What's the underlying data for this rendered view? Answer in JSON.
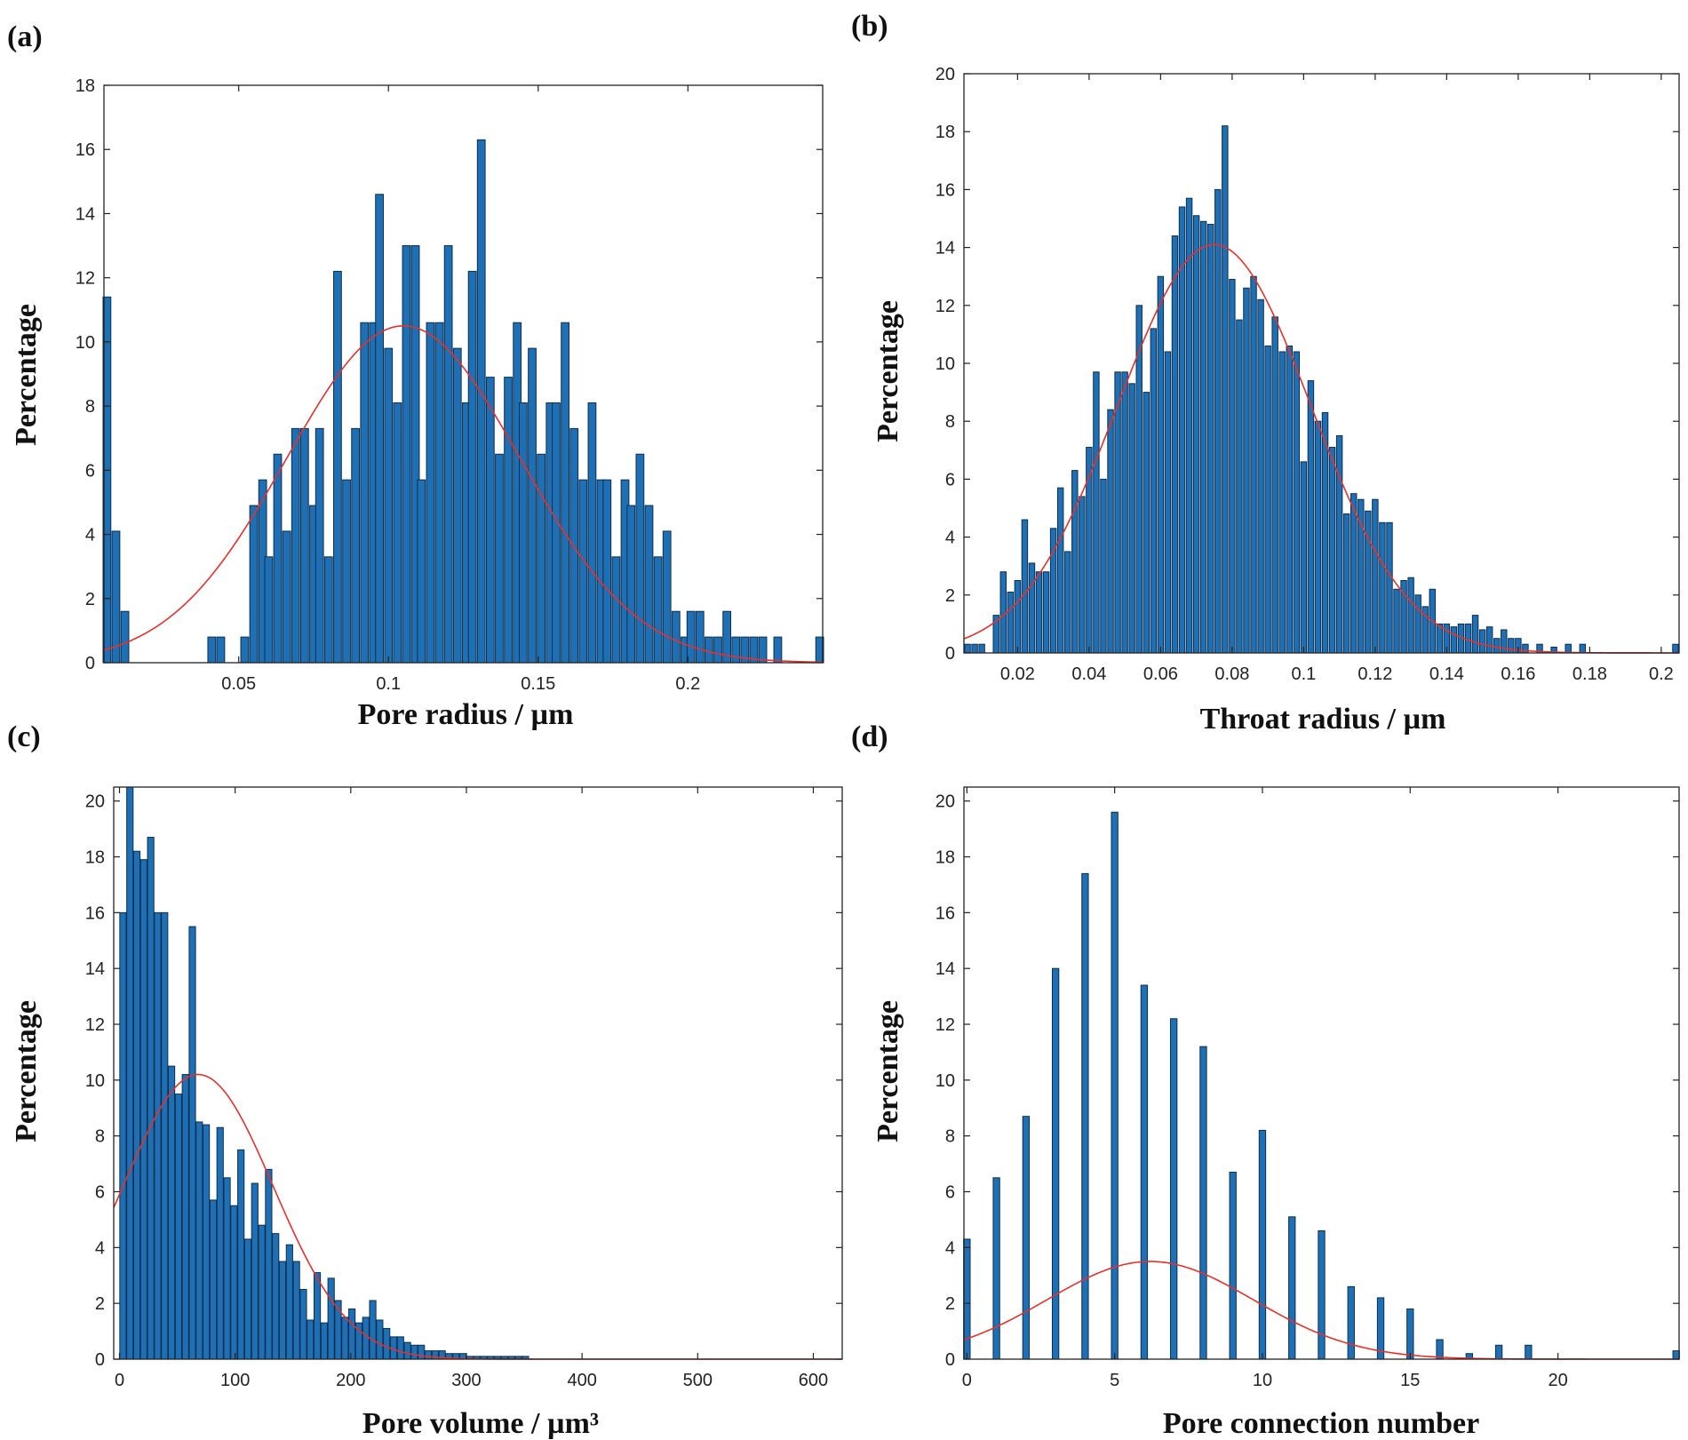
{
  "figure": {
    "bar_color": "#1f6fb4",
    "bar_edge": "#0c2f4f",
    "fit_color": "#e8302b"
  },
  "chart_data": [
    {
      "id": "a",
      "panel_label": "(a)",
      "type": "bar",
      "xlabel": "Pore radius / µm",
      "ylabel": "Percentage",
      "xlim": [
        0.005,
        0.245
      ],
      "ylim": [
        0,
        18
      ],
      "xticks": [
        0.05,
        0.1,
        0.15,
        0.2
      ],
      "xtick_labels": [
        "0.05",
        "0.1",
        "0.15",
        "0.2"
      ],
      "yticks": [
        0,
        2,
        4,
        6,
        8,
        10,
        12,
        14,
        16,
        18
      ],
      "ytick_labels": [
        "0",
        "2",
        "4",
        "6",
        "8",
        "10",
        "12",
        "14",
        "16",
        "18"
      ],
      "bar_width": 0.0026,
      "bars": [
        [
          0.006,
          11.4
        ],
        [
          0.009,
          4.1
        ],
        [
          0.012,
          1.6
        ],
        [
          0.041,
          0.8
        ],
        [
          0.044,
          0.8
        ],
        [
          0.052,
          0.8
        ],
        [
          0.055,
          4.9
        ],
        [
          0.058,
          5.7
        ],
        [
          0.06,
          3.3
        ],
        [
          0.063,
          6.5
        ],
        [
          0.066,
          4.1
        ],
        [
          0.069,
          7.3
        ],
        [
          0.072,
          7.3
        ],
        [
          0.075,
          4.9
        ],
        [
          0.077,
          7.3
        ],
        [
          0.08,
          3.3
        ],
        [
          0.083,
          12.2
        ],
        [
          0.086,
          5.7
        ],
        [
          0.089,
          7.3
        ],
        [
          0.092,
          10.6
        ],
        [
          0.095,
          10.6
        ],
        [
          0.097,
          14.6
        ],
        [
          0.1,
          9.8
        ],
        [
          0.103,
          8.1
        ],
        [
          0.106,
          13
        ],
        [
          0.109,
          13
        ],
        [
          0.111,
          5.7
        ],
        [
          0.114,
          10.6
        ],
        [
          0.117,
          10.6
        ],
        [
          0.12,
          13
        ],
        [
          0.123,
          9.8
        ],
        [
          0.126,
          8.1
        ],
        [
          0.128,
          12.2
        ],
        [
          0.131,
          16.3
        ],
        [
          0.134,
          8.9
        ],
        [
          0.137,
          6.5
        ],
        [
          0.14,
          8.9
        ],
        [
          0.143,
          10.6
        ],
        [
          0.145,
          8.1
        ],
        [
          0.148,
          9.8
        ],
        [
          0.151,
          6.5
        ],
        [
          0.154,
          8.1
        ],
        [
          0.156,
          8.1
        ],
        [
          0.159,
          10.6
        ],
        [
          0.162,
          7.3
        ],
        [
          0.165,
          5.7
        ],
        [
          0.168,
          8.1
        ],
        [
          0.171,
          5.7
        ],
        [
          0.173,
          5.7
        ],
        [
          0.176,
          3.3
        ],
        [
          0.179,
          5.7
        ],
        [
          0.181,
          4.9
        ],
        [
          0.184,
          6.5
        ],
        [
          0.187,
          4.9
        ],
        [
          0.19,
          3.3
        ],
        [
          0.193,
          4.1
        ],
        [
          0.196,
          1.6
        ],
        [
          0.199,
          0.8
        ],
        [
          0.201,
          1.6
        ],
        [
          0.204,
          1.6
        ],
        [
          0.207,
          0.8
        ],
        [
          0.21,
          0.8
        ],
        [
          0.213,
          1.6
        ],
        [
          0.216,
          0.8
        ],
        [
          0.219,
          0.8
        ],
        [
          0.222,
          0.8
        ],
        [
          0.225,
          0.8
        ],
        [
          0.23,
          0.8
        ],
        [
          0.244,
          0.8
        ]
      ],
      "fit": {
        "mean": 0.105,
        "sd": 0.039,
        "peak": 10.5
      }
    },
    {
      "id": "b",
      "panel_label": "(b)",
      "type": "bar",
      "xlabel": "Throat radius / µm",
      "ylabel": "Percentage",
      "xlim": [
        0.005,
        0.205
      ],
      "ylim": [
        0,
        20
      ],
      "xticks": [
        0.02,
        0.04,
        0.06,
        0.08,
        0.1,
        0.12,
        0.14,
        0.16,
        0.18,
        0.2
      ],
      "xtick_labels": [
        "0.02",
        "0.04",
        "0.06",
        "0.08",
        "0.1",
        "0.12",
        "0.14",
        "0.16",
        "0.18",
        "0.2"
      ],
      "yticks": [
        0,
        2,
        4,
        6,
        8,
        10,
        12,
        14,
        16,
        18,
        20
      ],
      "ytick_labels": [
        "0",
        "2",
        "4",
        "6",
        "8",
        "10",
        "12",
        "14",
        "16",
        "18",
        "20"
      ],
      "bar_width": 0.0016,
      "bars": [
        [
          0.006,
          0.3
        ],
        [
          0.008,
          0.3
        ],
        [
          0.01,
          0.3
        ],
        [
          0.014,
          1.3
        ],
        [
          0.016,
          2.8
        ],
        [
          0.018,
          2.1
        ],
        [
          0.02,
          2.5
        ],
        [
          0.022,
          4.6
        ],
        [
          0.024,
          3.1
        ],
        [
          0.026,
          2.8
        ],
        [
          0.028,
          2.8
        ],
        [
          0.03,
          4.3
        ],
        [
          0.032,
          5.7
        ],
        [
          0.034,
          3.5
        ],
        [
          0.036,
          6.3
        ],
        [
          0.038,
          5.4
        ],
        [
          0.04,
          7.1
        ],
        [
          0.042,
          9.7
        ],
        [
          0.044,
          6
        ],
        [
          0.046,
          8.4
        ],
        [
          0.048,
          9.7
        ],
        [
          0.05,
          9.7
        ],
        [
          0.052,
          9.3
        ],
        [
          0.054,
          12
        ],
        [
          0.056,
          9
        ],
        [
          0.058,
          11.2
        ],
        [
          0.06,
          13
        ],
        [
          0.062,
          10.4
        ],
        [
          0.064,
          14.4
        ],
        [
          0.066,
          15.4
        ],
        [
          0.068,
          15.7
        ],
        [
          0.07,
          15.1
        ],
        [
          0.072,
          14.9
        ],
        [
          0.074,
          14.8
        ],
        [
          0.076,
          16
        ],
        [
          0.078,
          18.2
        ],
        [
          0.08,
          12.9
        ],
        [
          0.082,
          11.5
        ],
        [
          0.084,
          12.6
        ],
        [
          0.086,
          13
        ],
        [
          0.088,
          12.2
        ],
        [
          0.09,
          10.6
        ],
        [
          0.092,
          11.6
        ],
        [
          0.094,
          10.4
        ],
        [
          0.096,
          10.6
        ],
        [
          0.098,
          10.4
        ],
        [
          0.1,
          6.6
        ],
        [
          0.102,
          9.4
        ],
        [
          0.104,
          8
        ],
        [
          0.106,
          8.3
        ],
        [
          0.108,
          7.1
        ],
        [
          0.11,
          7.5
        ],
        [
          0.112,
          4.8
        ],
        [
          0.114,
          5.5
        ],
        [
          0.116,
          5.3
        ],
        [
          0.118,
          4.9
        ],
        [
          0.12,
          5.3
        ],
        [
          0.122,
          4.5
        ],
        [
          0.124,
          4.5
        ],
        [
          0.126,
          2.2
        ],
        [
          0.128,
          2.5
        ],
        [
          0.13,
          2.6
        ],
        [
          0.132,
          2
        ],
        [
          0.134,
          1.6
        ],
        [
          0.136,
          2.2
        ],
        [
          0.138,
          1
        ],
        [
          0.14,
          1
        ],
        [
          0.142,
          0.9
        ],
        [
          0.144,
          1
        ],
        [
          0.146,
          1
        ],
        [
          0.148,
          1.3
        ],
        [
          0.15,
          0.8
        ],
        [
          0.152,
          0.9
        ],
        [
          0.154,
          0.5
        ],
        [
          0.156,
          0.8
        ],
        [
          0.158,
          0.5
        ],
        [
          0.16,
          0.5
        ],
        [
          0.162,
          0.3
        ],
        [
          0.166,
          0.3
        ],
        [
          0.17,
          0.2
        ],
        [
          0.174,
          0.3
        ],
        [
          0.178,
          0.3
        ],
        [
          0.204,
          0.3
        ]
      ],
      "fit": {
        "mean": 0.075,
        "sd": 0.027,
        "peak": 14.1
      }
    },
    {
      "id": "c",
      "panel_label": "(c)",
      "type": "bar",
      "xlabel": "Pore volume / µm³",
      "ylabel": "Percentage",
      "xlim": [
        -5,
        625
      ],
      "ylim": [
        0,
        20.5
      ],
      "xticks": [
        0,
        100,
        200,
        300,
        400,
        500,
        600
      ],
      "xtick_labels": [
        "0",
        "100",
        "200",
        "300",
        "400",
        "500",
        "600"
      ],
      "yticks": [
        0,
        2,
        4,
        6,
        8,
        10,
        12,
        14,
        16,
        18,
        20
      ],
      "ytick_labels": [
        "0",
        "2",
        "4",
        "6",
        "8",
        "10",
        "12",
        "14",
        "16",
        "18",
        "20"
      ],
      "bar_width": 5.5,
      "bars": [
        [
          3,
          16
        ],
        [
          9,
          20.5
        ],
        [
          15,
          18.2
        ],
        [
          21,
          17.9
        ],
        [
          27,
          18.7
        ],
        [
          33,
          16
        ],
        [
          39,
          16
        ],
        [
          45,
          10.5
        ],
        [
          51,
          9.5
        ],
        [
          57,
          10.2
        ],
        [
          63,
          15.5
        ],
        [
          69,
          8.5
        ],
        [
          75,
          8.4
        ],
        [
          81,
          5.7
        ],
        [
          87,
          8.3
        ],
        [
          93,
          6.5
        ],
        [
          99,
          5.5
        ],
        [
          105,
          7.5
        ],
        [
          111,
          4.3
        ],
        [
          117,
          6.3
        ],
        [
          123,
          4.8
        ],
        [
          129,
          6.8
        ],
        [
          135,
          4.5
        ],
        [
          141,
          3.5
        ],
        [
          147,
          4.1
        ],
        [
          153,
          3.5
        ],
        [
          159,
          2.5
        ],
        [
          165,
          1.4
        ],
        [
          171,
          3.1
        ],
        [
          177,
          1.3
        ],
        [
          183,
          2.9
        ],
        [
          189,
          2.1
        ],
        [
          195,
          1.5
        ],
        [
          201,
          1.8
        ],
        [
          207,
          1.3
        ],
        [
          213,
          1.5
        ],
        [
          219,
          2.1
        ],
        [
          225,
          1.4
        ],
        [
          231,
          1.1
        ],
        [
          237,
          0.8
        ],
        [
          243,
          0.8
        ],
        [
          249,
          0.6
        ],
        [
          255,
          0.5
        ],
        [
          261,
          0.5
        ],
        [
          267,
          0.3
        ],
        [
          273,
          0.3
        ],
        [
          279,
          0.3
        ],
        [
          285,
          0.2
        ],
        [
          291,
          0.2
        ],
        [
          297,
          0.2
        ],
        [
          303,
          0.1
        ],
        [
          309,
          0.1
        ],
        [
          315,
          0.1
        ],
        [
          321,
          0.1
        ],
        [
          327,
          0.1
        ],
        [
          333,
          0.1
        ],
        [
          339,
          0.1
        ],
        [
          345,
          0.1
        ],
        [
          351,
          0.1
        ]
      ],
      "fit": {
        "mean": 68,
        "sd": 65,
        "peak": 10.2
      }
    },
    {
      "id": "d",
      "panel_label": "(d)",
      "type": "bar",
      "xlabel": "Pore connection number",
      "ylabel": "Percentage",
      "xlim": [
        -0.1,
        24.1
      ],
      "ylim": [
        0,
        20.5
      ],
      "xticks": [
        0,
        5,
        10,
        15,
        20
      ],
      "xtick_labels": [
        "0",
        "5",
        "10",
        "15",
        "20"
      ],
      "yticks": [
        0,
        2,
        4,
        6,
        8,
        10,
        12,
        14,
        16,
        18,
        20
      ],
      "ytick_labels": [
        "0",
        "2",
        "4",
        "6",
        "8",
        "10",
        "12",
        "14",
        "16",
        "18",
        "20"
      ],
      "bar_width": 0.22,
      "bars": [
        [
          0,
          4.3
        ],
        [
          1,
          6.5
        ],
        [
          2,
          8.7
        ],
        [
          3,
          14
        ],
        [
          4,
          17.4
        ],
        [
          5,
          19.6
        ],
        [
          6,
          13.4
        ],
        [
          7,
          12.2
        ],
        [
          8,
          11.2
        ],
        [
          9,
          6.7
        ],
        [
          10,
          8.2
        ],
        [
          11,
          5.1
        ],
        [
          12,
          4.6
        ],
        [
          13,
          2.6
        ],
        [
          14,
          2.2
        ],
        [
          15,
          1.8
        ],
        [
          16,
          0.7
        ],
        [
          17,
          0.2
        ],
        [
          18,
          0.5
        ],
        [
          19,
          0.5
        ],
        [
          24,
          0.3
        ]
      ],
      "fit": {
        "mean": 6.2,
        "sd": 3.5,
        "peak": 3.5
      }
    }
  ]
}
